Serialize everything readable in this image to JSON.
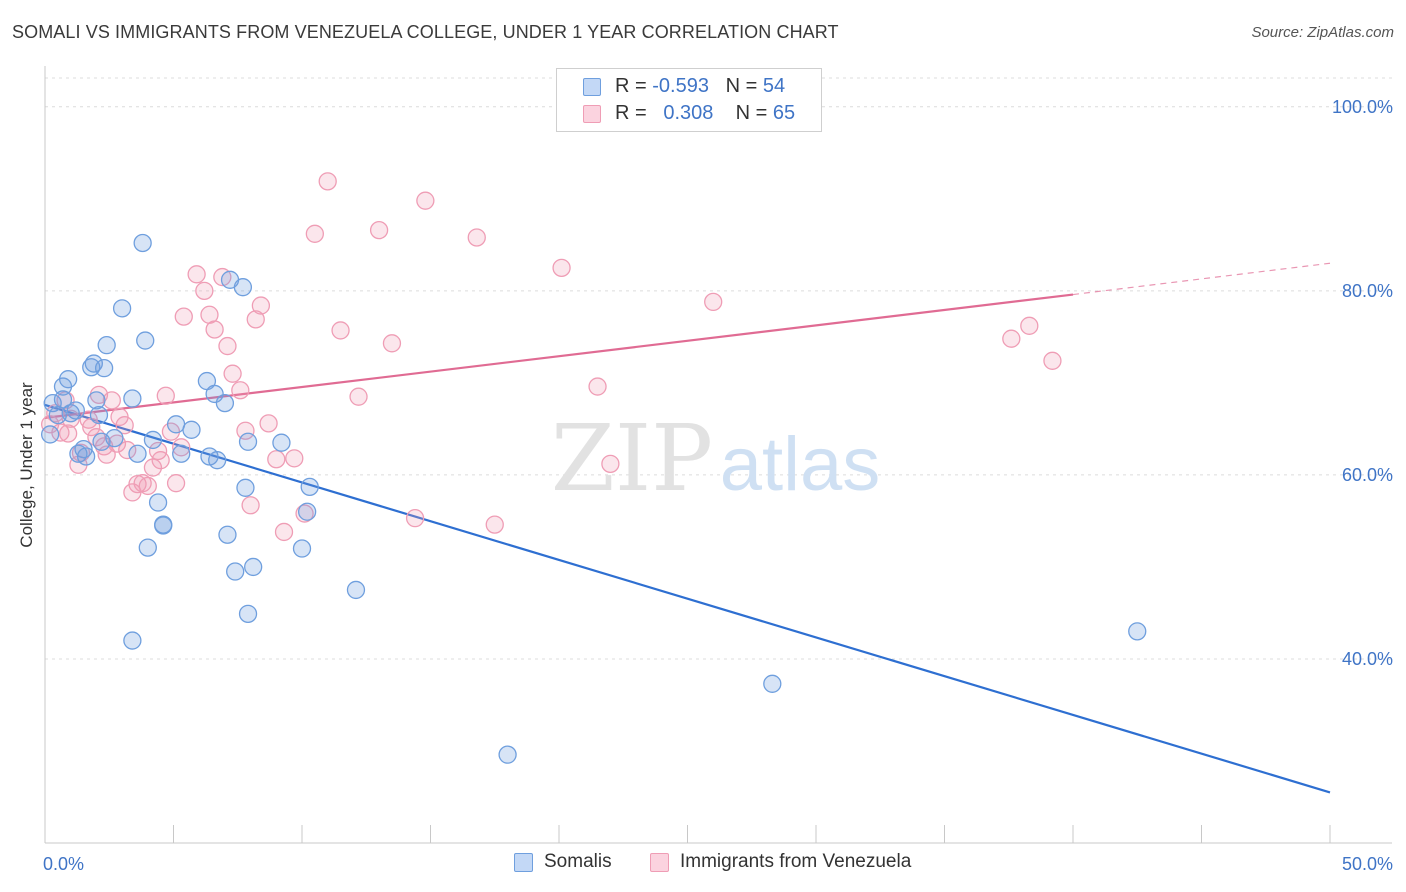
{
  "title": "SOMALI VS IMMIGRANTS FROM VENEZUELA COLLEGE, UNDER 1 YEAR CORRELATION CHART",
  "source": "Source: ZipAtlas.com",
  "watermark": {
    "zip": "ZIP",
    "atlas": "atlas"
  },
  "legend": {
    "rows": [
      {
        "r_label": "R = ",
        "r_value": "-0.593",
        "n_label": "N = ",
        "n_value": "54"
      },
      {
        "r_label": "R = ",
        "r_value": "0.308",
        "n_label": "N = ",
        "n_value": "65"
      }
    ]
  },
  "chart_data": {
    "type": "scatter",
    "title": "SOMALI VS IMMIGRANTS FROM VENEZUELA COLLEGE, UNDER 1 YEAR CORRELATION CHART",
    "xlabel": "",
    "ylabel": "College, Under 1 year",
    "xlim": [
      0,
      50
    ],
    "ylim": [
      20,
      104
    ],
    "x_tick_labels": [
      "0.0%",
      "50.0%"
    ],
    "y_ticks": [
      40,
      60,
      80,
      100
    ],
    "y_tick_labels": [
      "40.0%",
      "60.0%",
      "80.0%",
      "100.0%"
    ],
    "grid": true,
    "legend_position": "top-center",
    "colors": {
      "somalis": "#6f9fde",
      "venezuela": "#ef9db5",
      "somalis_line": "#2e6fd1",
      "venezuela_line": "#e06b93"
    },
    "series": [
      {
        "name": "Somalis",
        "r": -0.593,
        "n": 54,
        "trend": {
          "x0": 0.0,
          "y0": 67.6,
          "x1": 50.0,
          "y1": 25.5
        },
        "points": [
          [
            0.2,
            64.4
          ],
          [
            0.3,
            67.8
          ],
          [
            0.5,
            66.5
          ],
          [
            0.7,
            68.2
          ],
          [
            0.9,
            70.4
          ],
          [
            0.7,
            69.6
          ],
          [
            1.0,
            66.7
          ],
          [
            1.2,
            67.0
          ],
          [
            1.5,
            62.8
          ],
          [
            1.8,
            71.7
          ],
          [
            1.9,
            72.1
          ],
          [
            2.0,
            68.1
          ],
          [
            2.1,
            66.5
          ],
          [
            1.6,
            62.0
          ],
          [
            2.4,
            74.1
          ],
          [
            2.3,
            71.6
          ],
          [
            2.7,
            64.0
          ],
          [
            2.2,
            63.6
          ],
          [
            1.3,
            62.3
          ],
          [
            3.0,
            78.1
          ],
          [
            3.4,
            68.3
          ],
          [
            3.6,
            62.3
          ],
          [
            3.9,
            74.6
          ],
          [
            4.2,
            63.8
          ],
          [
            4.4,
            57.0
          ],
          [
            4.6,
            54.6
          ],
          [
            4.0,
            52.1
          ],
          [
            3.4,
            42.0
          ],
          [
            3.8,
            85.2
          ],
          [
            5.3,
            62.3
          ],
          [
            5.1,
            65.5
          ],
          [
            5.7,
            64.9
          ],
          [
            6.4,
            62.0
          ],
          [
            6.6,
            68.8
          ],
          [
            6.7,
            61.6
          ],
          [
            7.0,
            67.8
          ],
          [
            7.2,
            81.2
          ],
          [
            7.7,
            80.4
          ],
          [
            7.9,
            63.6
          ],
          [
            7.8,
            58.6
          ],
          [
            8.1,
            50.0
          ],
          [
            7.1,
            53.5
          ],
          [
            7.9,
            44.9
          ],
          [
            9.2,
            63.5
          ],
          [
            10.3,
            58.7
          ],
          [
            10.2,
            56.0
          ],
          [
            10.0,
            52.0
          ],
          [
            12.1,
            47.5
          ],
          [
            4.6,
            54.5
          ],
          [
            6.3,
            70.2
          ],
          [
            7.4,
            49.5
          ],
          [
            18.0,
            29.6
          ],
          [
            28.3,
            37.3
          ],
          [
            42.5,
            43.0
          ]
        ]
      },
      {
        "name": "Immigrants from Venezuela",
        "r": 0.308,
        "n": 65,
        "trend": {
          "x0": 0.0,
          "y0": 66.2,
          "x1": 40.0,
          "y1": 79.6,
          "dash_x1": 50.0,
          "dash_y1": 83.0
        },
        "points": [
          [
            0.2,
            65.5
          ],
          [
            0.4,
            66.7
          ],
          [
            0.6,
            64.6
          ],
          [
            0.8,
            68.1
          ],
          [
            0.9,
            64.5
          ],
          [
            1.0,
            66.1
          ],
          [
            1.3,
            61.1
          ],
          [
            1.4,
            62.4
          ],
          [
            1.7,
            66.0
          ],
          [
            1.8,
            65.2
          ],
          [
            2.0,
            64.1
          ],
          [
            2.1,
            68.7
          ],
          [
            2.3,
            63.1
          ],
          [
            2.4,
            62.2
          ],
          [
            2.6,
            68.1
          ],
          [
            2.8,
            63.4
          ],
          [
            2.9,
            66.3
          ],
          [
            3.1,
            65.4
          ],
          [
            3.2,
            62.7
          ],
          [
            3.4,
            58.1
          ],
          [
            3.6,
            59.0
          ],
          [
            3.8,
            59.1
          ],
          [
            4.0,
            58.8
          ],
          [
            4.2,
            60.8
          ],
          [
            4.4,
            62.6
          ],
          [
            4.5,
            61.6
          ],
          [
            4.7,
            68.6
          ],
          [
            4.9,
            64.7
          ],
          [
            5.1,
            59.1
          ],
          [
            5.3,
            63.0
          ],
          [
            5.4,
            77.2
          ],
          [
            5.9,
            81.8
          ],
          [
            6.2,
            80.0
          ],
          [
            6.4,
            77.4
          ],
          [
            6.6,
            75.8
          ],
          [
            6.9,
            81.5
          ],
          [
            7.1,
            74.0
          ],
          [
            7.3,
            71.0
          ],
          [
            7.6,
            69.2
          ],
          [
            7.8,
            64.8
          ],
          [
            8.0,
            56.7
          ],
          [
            8.2,
            76.9
          ],
          [
            8.4,
            78.4
          ],
          [
            8.7,
            65.6
          ],
          [
            9.0,
            61.7
          ],
          [
            9.3,
            53.8
          ],
          [
            9.7,
            61.8
          ],
          [
            10.1,
            55.8
          ],
          [
            10.5,
            86.2
          ],
          [
            11.0,
            91.9
          ],
          [
            11.5,
            75.7
          ],
          [
            12.2,
            68.5
          ],
          [
            13.0,
            86.6
          ],
          [
            13.5,
            74.3
          ],
          [
            14.4,
            55.3
          ],
          [
            14.8,
            89.8
          ],
          [
            16.8,
            85.8
          ],
          [
            17.5,
            54.6
          ],
          [
            20.1,
            82.5
          ],
          [
            21.5,
            69.6
          ],
          [
            22.0,
            61.2
          ],
          [
            26.0,
            78.8
          ],
          [
            37.6,
            74.8
          ],
          [
            38.3,
            76.2
          ],
          [
            39.2,
            72.4
          ]
        ]
      }
    ]
  },
  "bottom_legend": [
    {
      "label": "Somalis",
      "color": "#6f9fde"
    },
    {
      "label": "Immigrants from Venezuela",
      "color": "#ef9db5"
    }
  ]
}
